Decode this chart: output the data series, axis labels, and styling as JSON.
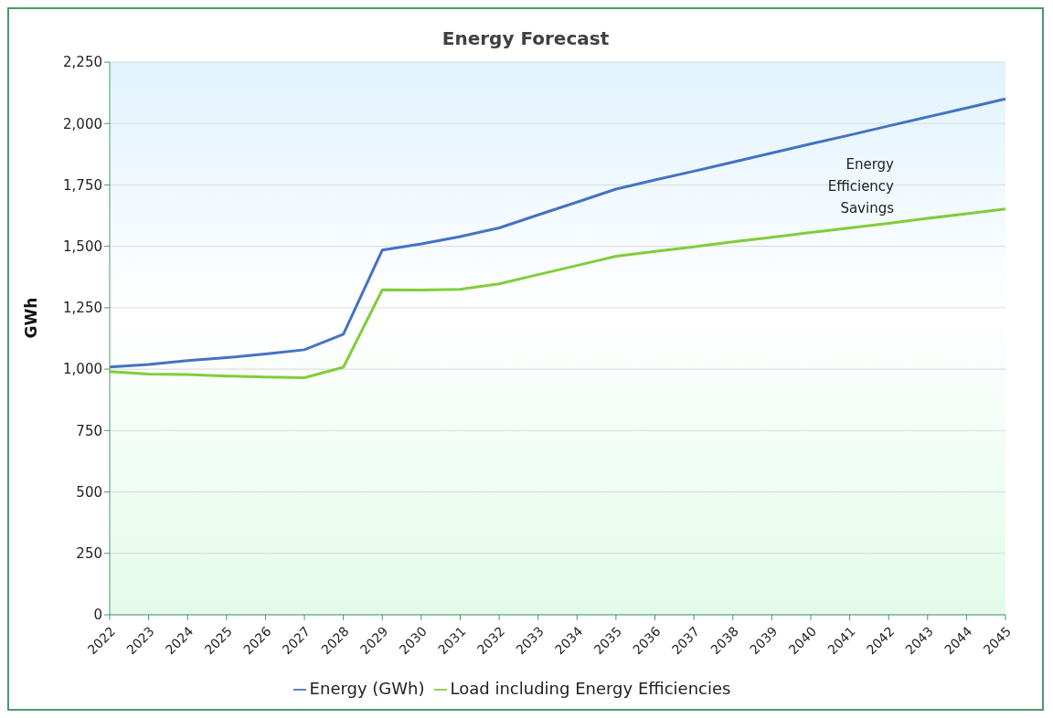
{
  "chart_data": {
    "type": "line",
    "title": "Energy Forecast",
    "ylabel": "GWh",
    "categories": [
      "2022",
      "2023",
      "2024",
      "2025",
      "2026",
      "2027",
      "2028",
      "2029",
      "2030",
      "2031",
      "2032",
      "2033",
      "2034",
      "2035",
      "2036",
      "2037",
      "2038",
      "2039",
      "2040",
      "2041",
      "2042",
      "2043",
      "2044",
      "2045"
    ],
    "series": [
      {
        "name": "Energy (GWh)",
        "color": "#4472c4",
        "values": [
          1009,
          1019,
          1035,
          1047,
          1062,
          1079,
          1142,
          1485,
          1510,
          1540,
          1575,
          1628,
          1680,
          1733,
          1770,
          1806,
          1843,
          1880,
          1917,
          1953,
          1990,
          2027,
          2063,
          2100
        ]
      },
      {
        "name": "Load including Energy Efficiencies",
        "color": "#82cc3c",
        "values": [
          990,
          980,
          978,
          972,
          968,
          965,
          1008,
          1323,
          1322,
          1325,
          1347,
          1385,
          1422,
          1460,
          1479,
          1498,
          1518,
          1537,
          1556,
          1575,
          1594,
          1614,
          1633,
          1652
        ]
      }
    ],
    "ylim": [
      0,
      2250
    ],
    "yticks": [
      0,
      250,
      500,
      750,
      {
        "value": 1000,
        "label": "1,000"
      },
      {
        "value": 1250,
        "label": "1,250"
      },
      {
        "value": 1500,
        "label": "1,500"
      },
      {
        "value": 1750,
        "label": "1,750"
      },
      {
        "value": 2000,
        "label": "2,000"
      },
      {
        "value": 2250,
        "label": "2,250"
      }
    ],
    "grid": "y",
    "legend": "bottom",
    "marker": "none",
    "line_style": "solid",
    "annotations": [
      "Energy\nEfficiency\nSavings"
    ]
  }
}
